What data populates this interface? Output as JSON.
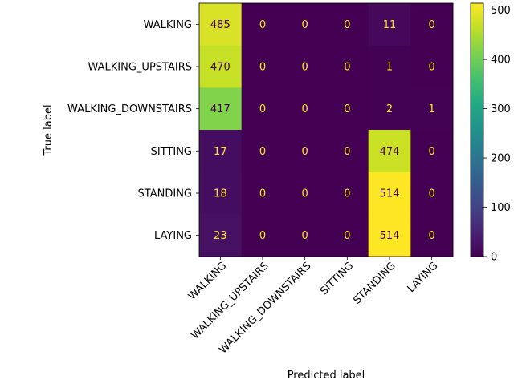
{
  "chart_data": {
    "type": "heatmap",
    "xlabel": "Predicted label",
    "ylabel": "True label",
    "row_labels": [
      "WALKING",
      "WALKING_UPSTAIRS",
      "WALKING_DOWNSTAIRS",
      "SITTING",
      "STANDING",
      "LAYING"
    ],
    "col_labels": [
      "WALKING",
      "WALKING_UPSTAIRS",
      "WALKING_DOWNSTAIRS",
      "SITTING",
      "STANDING",
      "LAYING"
    ],
    "values": [
      [
        485,
        0,
        0,
        0,
        11,
        0
      ],
      [
        470,
        0,
        0,
        0,
        1,
        0
      ],
      [
        417,
        0,
        0,
        0,
        2,
        1
      ],
      [
        17,
        0,
        0,
        0,
        474,
        0
      ],
      [
        18,
        0,
        0,
        0,
        514,
        0
      ],
      [
        23,
        0,
        0,
        0,
        514,
        0
      ]
    ],
    "colormap": "viridis",
    "vmin": 0,
    "vmax": 514,
    "colorbar_ticks": [
      0,
      100,
      200,
      300,
      400,
      500
    ],
    "x_tick_rotation_deg": 45,
    "grid": false,
    "legend": "colorbar-right"
  }
}
